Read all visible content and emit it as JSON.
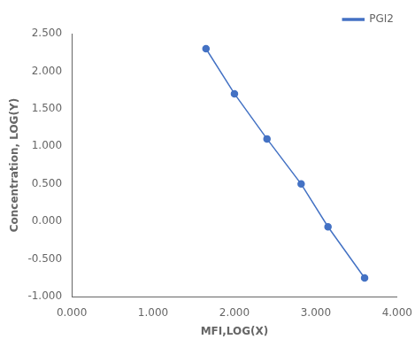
{
  "chart_data": {
    "type": "line",
    "x": [
      1.65,
      2.0,
      2.4,
      2.82,
      3.15,
      3.6
    ],
    "series": [
      {
        "name": "PGI2",
        "color": "#4472C4",
        "marker": "circle",
        "values": [
          2.3,
          1.7,
          1.1,
          0.5,
          -0.07,
          -0.75
        ]
      }
    ],
    "xlabel": "MFI,LOG(X)",
    "ylabel": "Concentration, LOG(Y)",
    "xlim": [
      0.0,
      4.0
    ],
    "ylim": [
      -1.0,
      2.5
    ],
    "xticks": [
      {
        "value": 0.0,
        "label": "0.000"
      },
      {
        "value": 1.0,
        "label": "1.000"
      },
      {
        "value": 2.0,
        "label": "2.000"
      },
      {
        "value": 3.0,
        "label": "3.000"
      },
      {
        "value": 4.0,
        "label": "4.000"
      }
    ],
    "yticks": [
      {
        "value": -1.0,
        "label": "-1.000"
      },
      {
        "value": -0.5,
        "label": "-0.500"
      },
      {
        "value": 0.0,
        "label": "0.000"
      },
      {
        "value": 0.5,
        "label": "0.500"
      },
      {
        "value": 1.0,
        "label": "1.000"
      },
      {
        "value": 1.5,
        "label": "1.500"
      },
      {
        "value": 2.0,
        "label": "2.000"
      },
      {
        "value": 2.5,
        "label": "2.500"
      }
    ],
    "grid": false,
    "legend": "upper right"
  }
}
